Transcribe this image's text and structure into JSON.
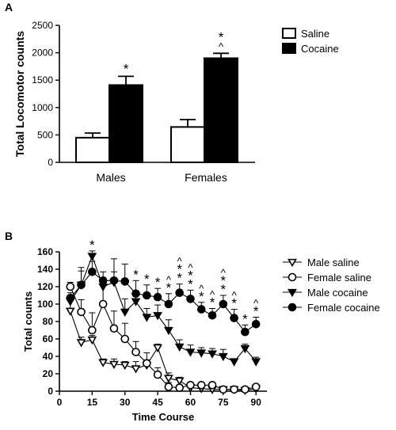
{
  "chart_data": [
    {
      "panel_label": "A",
      "type": "bar",
      "xlabel": "",
      "ylabel": "Total Locomotor counts",
      "ylim": [
        0,
        2500
      ],
      "yticks": [
        0,
        500,
        1000,
        1500,
        2000,
        2500
      ],
      "grid": false,
      "legend_position": "top-right",
      "categories": [
        "Males",
        "Females"
      ],
      "series": [
        {
          "name": "Saline",
          "fill": "#ffffff",
          "values": [
            450,
            645
          ],
          "errors": [
            85,
            135
          ],
          "annotations": [
            "",
            ""
          ]
        },
        {
          "name": "Cocaine",
          "fill": "#000000",
          "values": [
            1410,
            1900
          ],
          "errors": [
            160,
            90
          ],
          "annotations": [
            "*",
            "*^"
          ]
        }
      ]
    },
    {
      "panel_label": "B",
      "type": "line",
      "xlabel": "Time Course",
      "ylabel": "Total counts",
      "xlim": [
        0,
        95
      ],
      "ylim": [
        0,
        160
      ],
      "xticks": [
        0,
        15,
        30,
        45,
        60,
        75,
        90
      ],
      "yticks": [
        0,
        20,
        40,
        60,
        80,
        100,
        120,
        140,
        160
      ],
      "grid": false,
      "legend_position": "right",
      "x": [
        5,
        10,
        15,
        20,
        25,
        30,
        35,
        40,
        45,
        50,
        55,
        60,
        65,
        70,
        75,
        80,
        85,
        90
      ],
      "series": [
        {
          "name": "Male saline",
          "marker": "triangle-down-open",
          "values": [
            92,
            56,
            59,
            33,
            31,
            30,
            26,
            30,
            50,
            15,
            12,
            4,
            3,
            2,
            2,
            2,
            1,
            3
          ],
          "errors": [
            12,
            6,
            5,
            4,
            6,
            4,
            8,
            6,
            4,
            6,
            4,
            3,
            2,
            2,
            2,
            1,
            2,
            2
          ]
        },
        {
          "name": "Female saline",
          "marker": "circle-open",
          "values": [
            120,
            91,
            70,
            100,
            72,
            60,
            45,
            32,
            19,
            5,
            4,
            7,
            7,
            7,
            2,
            2,
            2,
            5
          ],
          "errors": [
            5,
            14,
            20,
            30,
            20,
            18,
            12,
            12,
            8,
            5,
            3,
            3,
            3,
            2,
            2,
            1,
            2,
            2
          ]
        },
        {
          "name": "Male cocaine",
          "marker": "triangle-down-filled",
          "values": [
            103,
            122,
            155,
            120,
            125,
            91,
            103,
            85,
            87,
            70,
            51,
            45,
            44,
            43,
            40,
            34,
            49,
            34
          ],
          "errors": [
            6,
            16,
            6,
            10,
            12,
            15,
            12,
            10,
            12,
            12,
            8,
            8,
            6,
            6,
            8,
            3,
            5,
            5
          ]
        },
        {
          "name": "Female cocaine",
          "marker": "circle-filled",
          "values": [
            107,
            122,
            137,
            127,
            127,
            126,
            112,
            110,
            108,
            100,
            113,
            106,
            94,
            87,
            100,
            84,
            68,
            77
          ],
          "errors": [
            6,
            20,
            12,
            10,
            25,
            20,
            15,
            12,
            10,
            12,
            10,
            10,
            8,
            8,
            10,
            10,
            8,
            8
          ]
        }
      ],
      "annotations": [
        {
          "x": 15,
          "text": "*"
        },
        {
          "x": 35,
          "text": "*"
        },
        {
          "x": 40,
          "text": "*"
        },
        {
          "x": 45,
          "text": "*"
        },
        {
          "x": 50,
          "text": "^*"
        },
        {
          "x": 55,
          "text": "^**"
        },
        {
          "x": 60,
          "text": "^**"
        },
        {
          "x": 65,
          "text": "^*"
        },
        {
          "x": 70,
          "text": "^*"
        },
        {
          "x": 75,
          "text": "^**"
        },
        {
          "x": 80,
          "text": "^*"
        },
        {
          "x": 85,
          "text": "*"
        },
        {
          "x": 90,
          "text": "^*"
        }
      ]
    }
  ]
}
